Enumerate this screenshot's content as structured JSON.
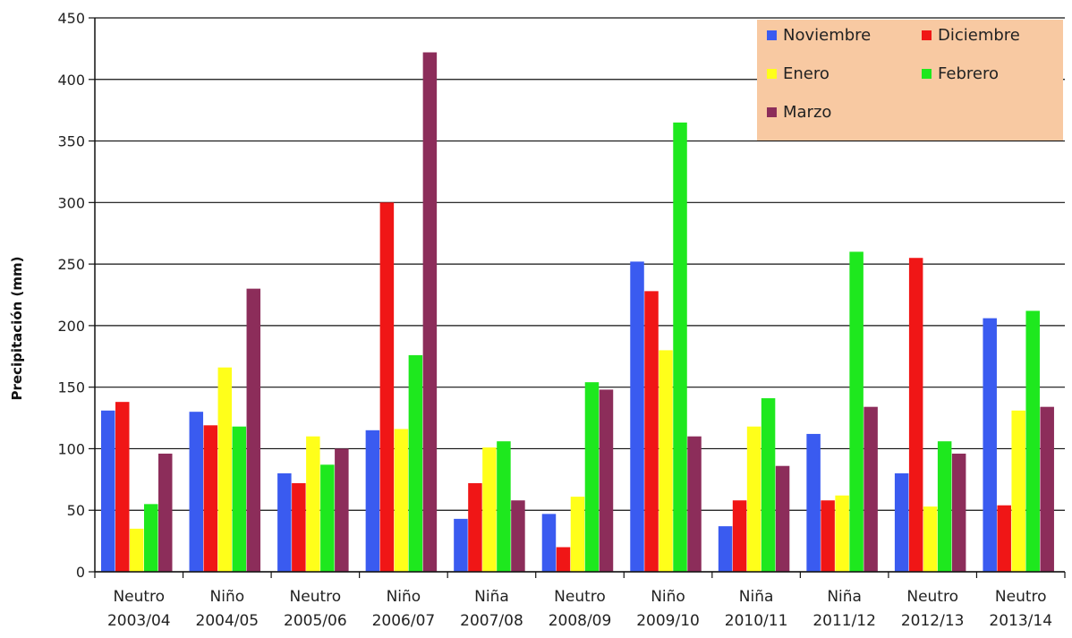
{
  "chart_data": {
    "type": "bar",
    "ylabel": "Precipitación (mm)",
    "ylim": [
      0,
      450
    ],
    "yticks": [
      "0",
      "50",
      "100",
      "150",
      "200",
      "250",
      "300",
      "350",
      "400",
      "450"
    ],
    "grid": true,
    "legend_position": "top-right",
    "categories": [
      [
        "Neutro",
        "2003/04"
      ],
      [
        "Niño",
        "2004/05"
      ],
      [
        "Neutro",
        "2005/06"
      ],
      [
        "Niño",
        "2006/07"
      ],
      [
        "Niña",
        "2007/08"
      ],
      [
        "Neutro",
        "2008/09"
      ],
      [
        "Niño",
        "2009/10"
      ],
      [
        "Niña",
        "2010/11"
      ],
      [
        "Niña",
        "2011/12"
      ],
      [
        "Neutro",
        "2012/13"
      ],
      [
        "Neutro",
        "2013/14"
      ]
    ],
    "series": [
      {
        "name": "Noviembre",
        "color": "#3a5bf0",
        "values": [
          131,
          130,
          80,
          115,
          43,
          47,
          252,
          37,
          112,
          80,
          206
        ]
      },
      {
        "name": "Diciembre",
        "color": "#f01616",
        "values": [
          138,
          119,
          72,
          300,
          72,
          20,
          228,
          58,
          58,
          255,
          54
        ]
      },
      {
        "name": "Enero",
        "color": "#ffff1a",
        "values": [
          35,
          166,
          110,
          116,
          101,
          61,
          180,
          118,
          62,
          53,
          131
        ]
      },
      {
        "name": "Febrero",
        "color": "#1ee81e",
        "values": [
          55,
          118,
          87,
          176,
          106,
          154,
          365,
          141,
          260,
          106,
          212
        ]
      },
      {
        "name": "Marzo",
        "color": "#8c2d5a",
        "values": [
          96,
          230,
          100,
          422,
          58,
          148,
          110,
          86,
          134,
          96,
          134
        ]
      }
    ],
    "legend_bg": "#f8c9a2",
    "grid_color": "#111111"
  }
}
